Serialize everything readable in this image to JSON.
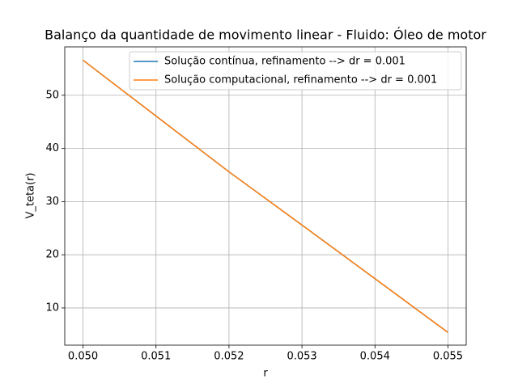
{
  "chart_data": {
    "type": "line",
    "title": "Balanço da quantidade de movimento linear - Fluido: Óleo de motor",
    "x_label": "r",
    "y_label": "V_teta(r)",
    "x": [
      0.05,
      0.051,
      0.052,
      0.053,
      0.054,
      0.055
    ],
    "series": [
      {
        "name": "Solução contínua, refinamento --> dr = 0.001",
        "color": "#1f77b4",
        "values": [
          56.6,
          46.1,
          35.6,
          25.6,
          15.5,
          5.4
        ]
      },
      {
        "name": "Solução computacional, refinamento --> dr = 0.001",
        "color": "#ff7f0e",
        "values": [
          56.6,
          46.1,
          35.6,
          25.6,
          15.5,
          5.4
        ]
      }
    ],
    "xlim": [
      0.04975,
      0.05525
    ],
    "ylim": [
      3.0,
      59.1
    ],
    "xticks": [
      {
        "value": 0.05,
        "label": "0.050"
      },
      {
        "value": 0.051,
        "label": "0.051"
      },
      {
        "value": 0.052,
        "label": "0.052"
      },
      {
        "value": 0.053,
        "label": "0.053"
      },
      {
        "value": 0.054,
        "label": "0.054"
      },
      {
        "value": 0.055,
        "label": "0.055"
      }
    ],
    "yticks": [
      10,
      20,
      30,
      40,
      50
    ],
    "grid": true,
    "legend": "upper right"
  }
}
